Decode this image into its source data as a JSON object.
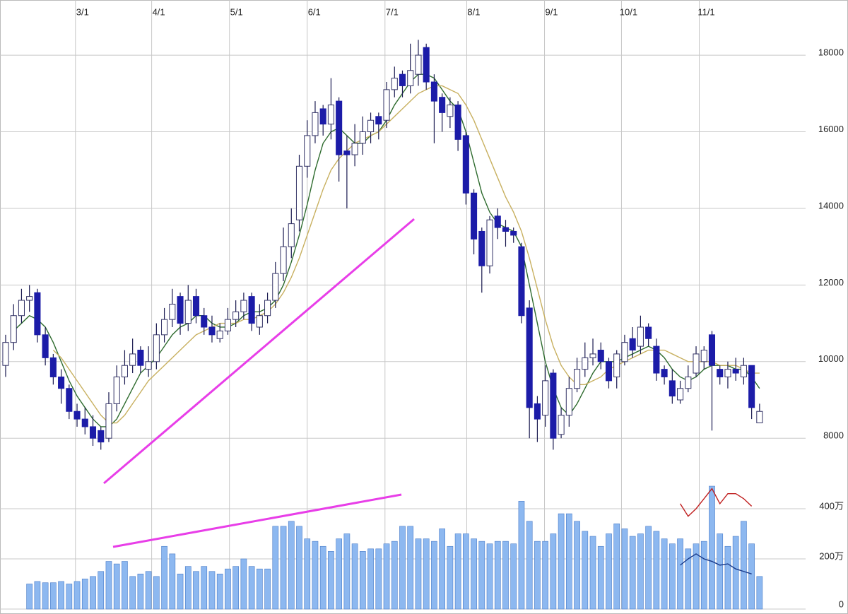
{
  "chart_data": {
    "type": "candlestick",
    "xlim": [
      -0.71,
      100.8
    ],
    "xticks": [
      {
        "value": 8.8,
        "label": "3/1"
      },
      {
        "value": 18.4,
        "label": "4/1"
      },
      {
        "value": 28.2,
        "label": "5/1"
      },
      {
        "value": 38.0,
        "label": "6/1"
      },
      {
        "value": 47.8,
        "label": "7/1"
      },
      {
        "value": 58.1,
        "label": "8/1"
      },
      {
        "value": 67.9,
        "label": "9/1"
      },
      {
        "value": 77.6,
        "label": "10/1"
      },
      {
        "value": 87.4,
        "label": "11/1"
      }
    ],
    "ylim": [
      3540,
      19440
    ],
    "yticks": [
      8000,
      10000,
      12000,
      14000,
      16000,
      18000
    ],
    "y2lim": [
      0,
      24280000
    ],
    "y2ticks": [
      0,
      {
        "value": 2000000,
        "label": "200万"
      },
      {
        "value": 4000000,
        "label": "400万"
      }
    ],
    "grid": true,
    "up_color": "#ffffff",
    "down_color": "#1c1ca8",
    "open": [
      9900,
      10500,
      11200,
      11600,
      11800,
      10700,
      10100,
      9600,
      9300,
      8700,
      8500,
      8300,
      8200,
      8000,
      8900,
      9600,
      9900,
      10300,
      9800,
      10000,
      10700,
      11100,
      11700,
      11000,
      11700,
      11200,
      10900,
      10600,
      10800,
      11100,
      11300,
      11700,
      10900,
      11200,
      11600,
      12300,
      13000,
      13700,
      15100,
      15900,
      16600,
      16200,
      16800,
      15500,
      15400,
      15700,
      16000,
      16400,
      16300,
      17100,
      17500,
      17200,
      17500,
      18200,
      17300,
      16900,
      16400,
      16700,
      15900,
      14400,
      13400,
      12500,
      13800,
      13500,
      13400,
      13000,
      11400,
      8900,
      8600,
      9700,
      8100,
      8600,
      9300,
      9800,
      10100,
      10300,
      10000,
      9600,
      10000,
      10600,
      10400,
      10900,
      10400,
      9800,
      9500,
      9000,
      9300,
      9700,
      10000,
      10700,
      9800,
      9600,
      9800,
      9600,
      9900,
      8400
    ],
    "high": [
      10700,
      11500,
      11900,
      12000,
      11900,
      10900,
      10200,
      9800,
      9400,
      8900,
      8800,
      8600,
      8300,
      9200,
      9900,
      10300,
      10600,
      10400,
      10400,
      11000,
      11400,
      11900,
      11800,
      12000,
      11900,
      11400,
      11200,
      11000,
      11400,
      11600,
      11800,
      11800,
      11500,
      11800,
      12600,
      13500,
      14000,
      15400,
      16300,
      16800,
      16700,
      17400,
      16900,
      15900,
      16200,
      16400,
      16500,
      16500,
      17300,
      17700,
      17600,
      18300,
      18400,
      18300,
      17500,
      17000,
      16900,
      16800,
      16000,
      14500,
      13500,
      13800,
      14000,
      13700,
      13500,
      13100,
      11600,
      9100,
      9900,
      9800,
      8800,
      9600,
      10100,
      10500,
      10600,
      10500,
      10100,
      10300,
      10700,
      10900,
      11200,
      11000,
      10600,
      9900,
      9800,
      9500,
      9900,
      10400,
      10400,
      10800,
      9900,
      10000,
      10100,
      10100,
      9900,
      8900
    ],
    "low": [
      9600,
      10300,
      11000,
      11300,
      10500,
      9900,
      9400,
      8900,
      8500,
      8300,
      8100,
      7800,
      7700,
      7900,
      8700,
      9400,
      9700,
      9700,
      9600,
      9800,
      10500,
      10900,
      10700,
      10800,
      11000,
      10700,
      10500,
      10500,
      10700,
      10900,
      11100,
      10800,
      10700,
      11000,
      11400,
      12100,
      12700,
      13400,
      14800,
      15700,
      15900,
      15800,
      14700,
      14000,
      15100,
      15400,
      15700,
      15800,
      16100,
      16900,
      16900,
      17000,
      17200,
      17100,
      15700,
      16000,
      16100,
      15500,
      14100,
      12800,
      11800,
      12300,
      13200,
      13000,
      13100,
      11000,
      8000,
      7900,
      8300,
      7700,
      8000,
      8300,
      9200,
      9600,
      9900,
      9800,
      9300,
      9300,
      9900,
      10100,
      10200,
      10400,
      9500,
      9400,
      8900,
      8900,
      9200,
      9600,
      9800,
      8200,
      9400,
      9300,
      9500,
      9400,
      8500,
      8400
    ],
    "close": [
      10500,
      11200,
      11600,
      11700,
      10700,
      10100,
      9600,
      9300,
      8700,
      8500,
      8300,
      8000,
      7900,
      8900,
      9600,
      9900,
      10200,
      9900,
      10000,
      10700,
      11100,
      11500,
      11000,
      11600,
      11200,
      10900,
      10700,
      10800,
      11100,
      11300,
      11600,
      11000,
      11200,
      11600,
      12300,
      13000,
      13600,
      15100,
      15900,
      16500,
      16200,
      16700,
      15400,
      15400,
      15700,
      16000,
      16300,
      16200,
      17100,
      17400,
      17200,
      17600,
      18000,
      17300,
      16800,
      16500,
      16700,
      15800,
      14400,
      13200,
      12500,
      13700,
      13500,
      13400,
      13300,
      11200,
      8800,
      8500,
      9500,
      8000,
      8600,
      9300,
      9800,
      10100,
      10200,
      10000,
      9500,
      10200,
      10500,
      10300,
      10900,
      10600,
      9700,
      9600,
      9100,
      9300,
      9600,
      10200,
      10300,
      9900,
      9600,
      9800,
      9700,
      9900,
      8800,
      8700
    ],
    "volume": {
      "color": "#8db8f0",
      "axis": "y2",
      "values": [
        null,
        null,
        null,
        1000000,
        1100000,
        1050000,
        1050000,
        1100000,
        1000000,
        1100000,
        1200000,
        1300000,
        1500000,
        1900000,
        1800000,
        1900000,
        1300000,
        1400000,
        1500000,
        1300000,
        2500000,
        2200000,
        1400000,
        1700000,
        1500000,
        1700000,
        1500000,
        1400000,
        1600000,
        1700000,
        2000000,
        1700000,
        1600000,
        1600000,
        3300000,
        3300000,
        3500000,
        3300000,
        2800000,
        2700000,
        2500000,
        2300000,
        2800000,
        3000000,
        2600000,
        2300000,
        2400000,
        2400000,
        2600000,
        2700000,
        3300000,
        3300000,
        2800000,
        2800000,
        2700000,
        3200000,
        2500000,
        3000000,
        3000000,
        2800000,
        2700000,
        2600000,
        2700000,
        2700000,
        2600000,
        4300000,
        3500000,
        2700000,
        2700000,
        3000000,
        3800000,
        3800000,
        3500000,
        3100000,
        2900000,
        2500000,
        3000000,
        3400000,
        3200000,
        2900000,
        3000000,
        3300000,
        3100000,
        2800000,
        2600000,
        2800000,
        2400000,
        2600000,
        2700000,
        4900000,
        3000000,
        2500000,
        2900000,
        3500000,
        2600000,
        1300000
      ]
    },
    "lines": [
      {
        "color": "#2e6b2e",
        "values": [
          null,
          10800,
          11000,
          11200,
          11100,
          10900,
          10500,
          10000,
          9500,
          9100,
          8800,
          8500,
          8300,
          8300,
          8500,
          8900,
          9300,
          9700,
          9900,
          10100,
          10400,
          10700,
          10900,
          11000,
          11200,
          11200,
          11000,
          10900,
          10900,
          11000,
          11200,
          11300,
          11300,
          11400,
          11600,
          12000,
          12600,
          13300,
          14100,
          15000,
          15700,
          16000,
          16100,
          15900,
          15700,
          15700,
          15900,
          16000,
          16300,
          16700,
          17000,
          17300,
          17500,
          17500,
          17400,
          17100,
          16800,
          16600,
          16000,
          15200,
          14400,
          13900,
          13600,
          13500,
          13400,
          13000,
          12000,
          11000,
          10000,
          9300,
          8800,
          8600,
          8900,
          9300,
          9700,
          10000,
          10000,
          10000,
          10100,
          10200,
          10300,
          10400,
          10300,
          10100,
          9800,
          9600,
          9500,
          9600,
          9800,
          9900,
          9900,
          9900,
          9800,
          9800,
          9600,
          9300
        ]
      },
      {
        "color": "#c8b060",
        "values": [
          null,
          null,
          null,
          null,
          null,
          null,
          10300,
          10100,
          9800,
          9500,
          9200,
          8900,
          8600,
          8400,
          8400,
          8600,
          8900,
          9200,
          9500,
          9700,
          9900,
          10100,
          10300,
          10500,
          10700,
          10800,
          10900,
          11000,
          11000,
          11000,
          11100,
          11100,
          11200,
          11300,
          11500,
          11800,
          12200,
          12700,
          13300,
          13900,
          14500,
          15000,
          15300,
          15500,
          15700,
          15800,
          15900,
          16000,
          16200,
          16400,
          16600,
          16800,
          17000,
          17100,
          17200,
          17200,
          17100,
          17000,
          16700,
          16300,
          15800,
          15300,
          14800,
          14300,
          13900,
          13400,
          12700,
          11900,
          11100,
          10400,
          9900,
          9600,
          9400,
          9400,
          9500,
          9600,
          9800,
          9900,
          10000,
          10100,
          10200,
          10300,
          10300,
          10300,
          10200,
          10100,
          10000,
          10000,
          10000,
          10000,
          9900,
          9900,
          9900,
          9800,
          9700,
          9700
        ]
      }
    ],
    "overlays": [
      {
        "color": "#c02020",
        "axis": "y2",
        "x": [
          85,
          86,
          87,
          88,
          89,
          90,
          91,
          92,
          93,
          94
        ],
        "values": [
          4200000,
          3700000,
          4000000,
          4400000,
          4800000,
          4200000,
          4600000,
          4600000,
          4400000,
          4100000
        ]
      },
      {
        "color": "#1a3a8a",
        "axis": "y2",
        "x": [
          85,
          86,
          87,
          88,
          89,
          90,
          91,
          92,
          93,
          94
        ],
        "values": [
          1750000,
          2000000,
          2200000,
          2000000,
          1900000,
          1750000,
          1800000,
          1600000,
          1500000,
          1400000
        ]
      }
    ]
  }
}
